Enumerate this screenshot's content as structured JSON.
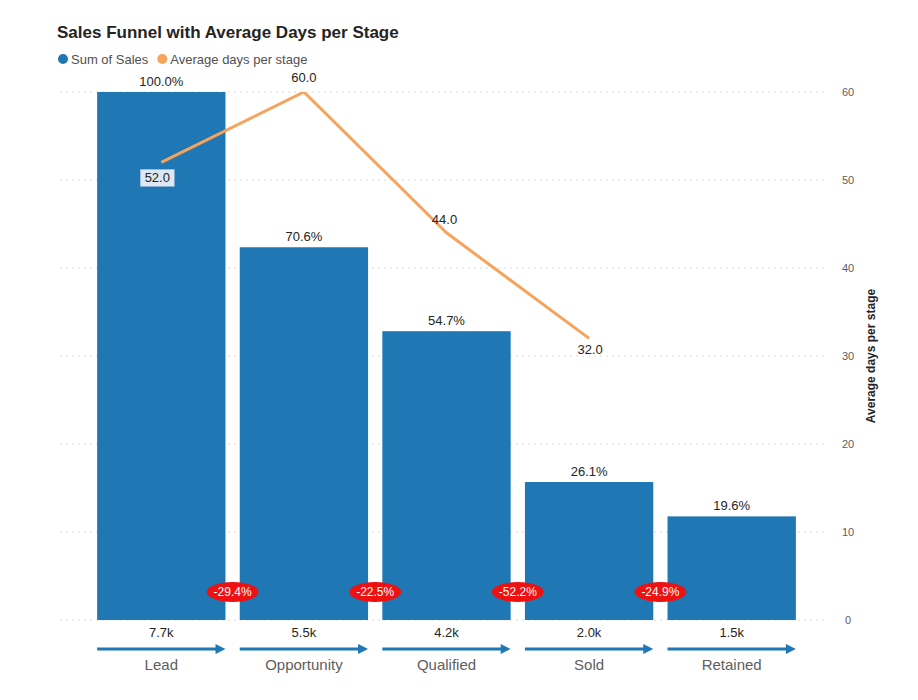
{
  "chart_data": {
    "type": "bar",
    "title": "Sales Funnel with Average Days per Stage",
    "categories": [
      "Lead",
      "Opportunity",
      "Qualified",
      "Sold",
      "Retained"
    ],
    "series": [
      {
        "name": "Sum of Sales",
        "type": "bar",
        "color": "#1F77B4",
        "values": [
          7730,
          5457,
          4228,
          2020,
          1517
        ],
        "value_labels": [
          "7.7k",
          "5.5k",
          "4.2k",
          "2.0k",
          "1.5k"
        ]
      },
      {
        "name": "Average days per stage",
        "type": "line",
        "axis": "y2",
        "color": "#F7A35C",
        "values": [
          52,
          60,
          44,
          32,
          null
        ],
        "value_labels": [
          "52.0",
          "60.0",
          "44.0",
          "32.0",
          null
        ]
      }
    ],
    "share": {
      "values": [
        100,
        70.6,
        54.7,
        26.1,
        19.6
      ],
      "labels": [
        "100.0%",
        "70.6%",
        "54.7%",
        "26.1%",
        "19.6%"
      ]
    },
    "change": {
      "values": [
        -29.4,
        -22.5,
        -52.2,
        -24.9
      ],
      "labels": [
        "-29.4%",
        "-22.5%",
        "-52.2%",
        "-24.9%"
      ]
    },
    "ylim": [
      0,
      7730
    ],
    "y2lim": [
      0,
      60
    ],
    "y2ticks": [
      0,
      10,
      20,
      30,
      40,
      50,
      60
    ],
    "y2label": "Average days per stage",
    "grid": true,
    "data_labels": true,
    "legend": "top-left"
  }
}
